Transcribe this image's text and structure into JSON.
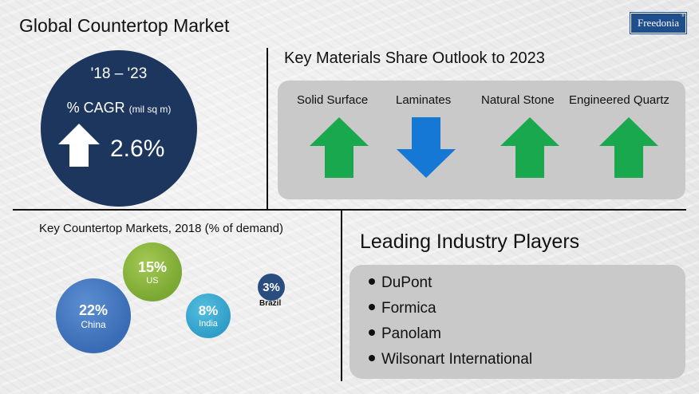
{
  "brand": {
    "logo_text": "Freedonia",
    "logo_mark": "®"
  },
  "title": "Global Countertop Market",
  "cagr": {
    "period": "'18 – '23",
    "label": "% CAGR",
    "unit": "(mil sq m)",
    "value": "2.6%",
    "trend": "up",
    "icon": "up-arrow-icon",
    "circle_color": "#1d365e"
  },
  "materials": {
    "title": "Key Materials Share Outlook to 2023",
    "panel_color": "#c9c9c9",
    "items": [
      {
        "label": "Solid Surface",
        "trend": "up",
        "icon": "up-arrow-icon",
        "color": "#1aa84f"
      },
      {
        "label": "Laminates",
        "trend": "down",
        "icon": "down-arrow-icon",
        "color": "#1478d4"
      },
      {
        "label": "Natural Stone",
        "trend": "up",
        "icon": "up-arrow-icon",
        "color": "#1aa84f"
      },
      {
        "label": "Engineered Quartz",
        "trend": "up",
        "icon": "up-arrow-icon",
        "color": "#1aa84f"
      }
    ]
  },
  "markets": {
    "title": "Key Countertop Markets, 2018 (% of demand)",
    "items": [
      {
        "name": "China",
        "pct": "22%",
        "value": 22,
        "color": "#3a6bb5"
      },
      {
        "name": "US",
        "pct": "15%",
        "value": 15,
        "color": "#7aa832"
      },
      {
        "name": "India",
        "pct": "8%",
        "value": 8,
        "color": "#2f9dc8"
      },
      {
        "name": "Brazil",
        "pct": "3%",
        "value": 3,
        "color": "#2a4d7f"
      }
    ]
  },
  "players": {
    "title": "Leading Industry Players",
    "items": [
      "DuPont",
      "Formica",
      "Panolam",
      "Wilsonart International"
    ]
  }
}
